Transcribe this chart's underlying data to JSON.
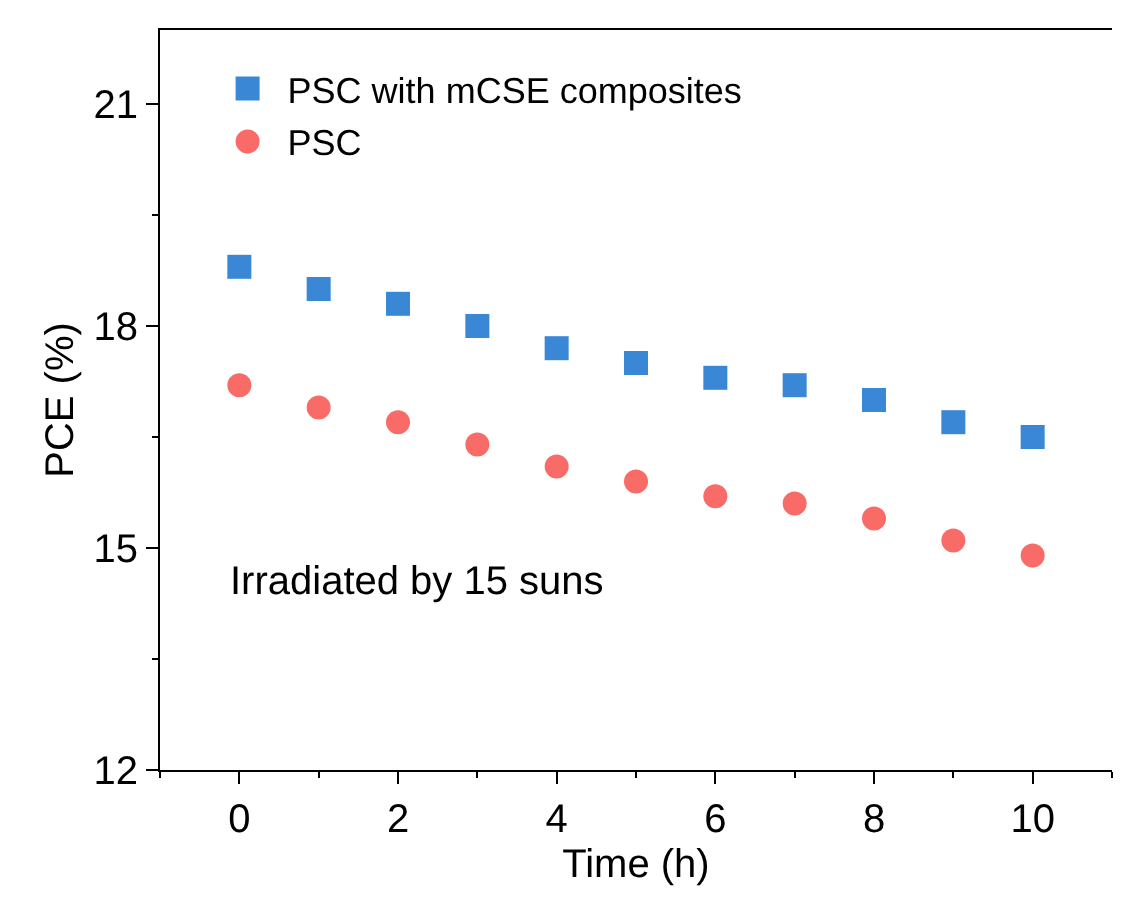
{
  "chart_data": {
    "type": "scatter",
    "xlabel": "Time (h)",
    "ylabel": "PCE (%)",
    "x": [
      0,
      1,
      2,
      3,
      4,
      5,
      6,
      7,
      8,
      9,
      10
    ],
    "series": [
      {
        "name": "PSC with mCSE composites",
        "color": "#3a87d6",
        "marker": "square",
        "values": [
          18.8,
          18.5,
          18.3,
          18.0,
          17.7,
          17.5,
          17.3,
          17.2,
          17.0,
          16.7,
          16.5
        ]
      },
      {
        "name": "PSC",
        "color": "#f86b67",
        "marker": "circle",
        "values": [
          17.2,
          16.9,
          16.7,
          16.4,
          16.1,
          15.9,
          15.7,
          15.6,
          15.4,
          15.1,
          14.9
        ]
      }
    ],
    "xlim": [
      -1,
      11
    ],
    "ylim": [
      12,
      22
    ],
    "xticks": [
      0,
      2,
      4,
      6,
      8,
      10
    ],
    "yticks": [
      12,
      15,
      18,
      21
    ],
    "legend": "top left",
    "annotations": [
      "Irradiated by 15 suns"
    ]
  }
}
